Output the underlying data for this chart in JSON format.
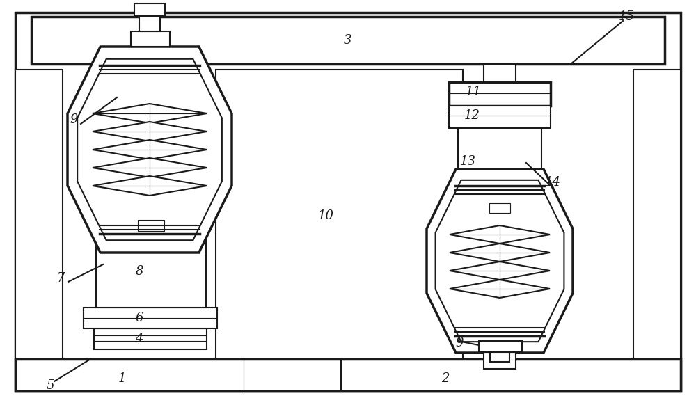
{
  "bg_color": "#ffffff",
  "line_color": "#1a1a1a",
  "lw": 1.5,
  "lw_thick": 2.5,
  "lw_thin": 0.8,
  "fig_width": 10.0,
  "fig_height": 5.82
}
